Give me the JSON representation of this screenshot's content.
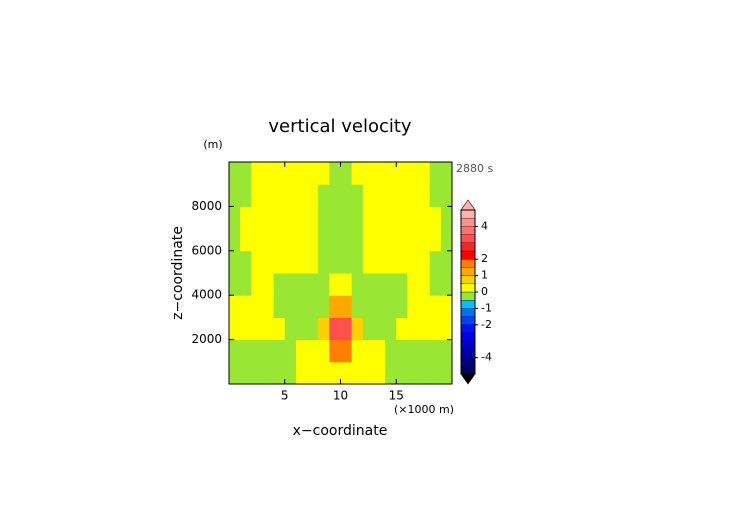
{
  "chart_data": {
    "type": "contour",
    "title": "vertical velocity",
    "y_unit_label": "(m)",
    "time_label": "2880 s",
    "xlabel": "x−coordinate",
    "x_unit_label": "(×1000 m)",
    "ylabel": "z−coordinate",
    "xlim": [
      0,
      20
    ],
    "ylim": [
      0,
      10000
    ],
    "xticks": [
      5,
      10,
      15
    ],
    "yticks": [
      2000,
      4000,
      6000,
      8000
    ],
    "x": [
      0.5,
      1.5,
      2.5,
      3.5,
      4.5,
      5.5,
      6.5,
      7.5,
      8.5,
      9.5,
      10.5,
      11.5,
      12.5,
      13.5,
      14.5,
      15.5,
      16.5,
      17.5,
      18.5,
      19.5
    ],
    "y": [
      500,
      1500,
      2500,
      3500,
      4500,
      5500,
      6500,
      7500,
      8500,
      9500
    ],
    "z": [
      [
        -0.2,
        -0.2,
        -0.2,
        -0.2,
        -0.2,
        -0.2,
        0.2,
        0.2,
        0.2,
        0.2,
        0.2,
        0.2,
        0.2,
        0.2,
        -0.2,
        -0.2,
        -0.2,
        -0.2,
        -0.2,
        -0.2
      ],
      [
        -0.2,
        -0.2,
        -0.2,
        -0.2,
        -0.2,
        -0.2,
        0.2,
        0.2,
        0.2,
        1.6,
        1.6,
        0.2,
        0.2,
        0.2,
        -0.2,
        -0.2,
        -0.2,
        -0.2,
        -0.2,
        -0.2
      ],
      [
        0.2,
        0.2,
        0.2,
        0.2,
        0.2,
        -0.2,
        -0.2,
        -0.2,
        0.7,
        3.2,
        3.2,
        0.7,
        -0.2,
        -0.2,
        -0.2,
        0.2,
        0.2,
        0.2,
        0.2,
        0.2
      ],
      [
        0.2,
        0.2,
        0.2,
        0.2,
        -0.2,
        -0.2,
        -0.2,
        -0.2,
        -0.2,
        1.2,
        1.2,
        -0.2,
        -0.2,
        -0.2,
        -0.2,
        -0.2,
        0.2,
        0.2,
        0.2,
        0.2
      ],
      [
        -0.2,
        -0.2,
        0.2,
        0.2,
        -0.2,
        -0.2,
        -0.2,
        -0.2,
        -0.2,
        0.2,
        0.2,
        -0.2,
        -0.2,
        -0.2,
        -0.2,
        -0.2,
        0.2,
        0.2,
        -0.2,
        -0.2
      ],
      [
        -0.2,
        -0.2,
        0.2,
        0.2,
        0.2,
        0.2,
        0.2,
        0.2,
        -0.2,
        -0.2,
        -0.2,
        -0.2,
        0.2,
        0.2,
        0.2,
        0.2,
        0.2,
        0.2,
        -0.2,
        -0.2
      ],
      [
        -0.2,
        0.2,
        0.2,
        0.2,
        0.2,
        0.2,
        0.2,
        0.2,
        -0.2,
        -0.2,
        -0.2,
        -0.2,
        0.2,
        0.2,
        0.2,
        0.2,
        0.2,
        0.2,
        0.2,
        -0.2
      ],
      [
        -0.2,
        0.2,
        0.2,
        0.2,
        0.2,
        0.2,
        0.2,
        0.2,
        -0.2,
        -0.2,
        -0.2,
        -0.2,
        0.2,
        0.2,
        0.2,
        0.2,
        0.2,
        0.2,
        0.2,
        -0.2
      ],
      [
        -0.2,
        -0.2,
        0.2,
        0.2,
        0.2,
        0.2,
        0.2,
        0.2,
        -0.2,
        -0.2,
        -0.2,
        -0.2,
        0.2,
        0.2,
        0.2,
        0.2,
        0.2,
        0.2,
        -0.2,
        -0.2
      ],
      [
        -0.2,
        -0.2,
        0.2,
        0.2,
        0.2,
        0.2,
        0.2,
        0.2,
        0.2,
        -0.2,
        -0.2,
        0.2,
        0.2,
        0.2,
        0.2,
        0.2,
        0.2,
        0.2,
        -0.2,
        -0.2
      ]
    ],
    "colorbar": {
      "levels": [
        -5,
        -4.5,
        -4,
        -3.5,
        -3,
        -2.5,
        -2,
        -1.5,
        -1,
        -0.5,
        0,
        0.5,
        1,
        1.5,
        2,
        2.5,
        3,
        3.5,
        4,
        4.5,
        5
      ],
      "colors": [
        "#000060",
        "#000080",
        "#0000a0",
        "#0000c0",
        "#0000e0",
        "#0010ff",
        "#0040ff",
        "#0070ff",
        "#00c0ff",
        "#99e633",
        "#ffff00",
        "#ffd000",
        "#ffa800",
        "#ff8000",
        "#ff0000",
        "#ff2020",
        "#ff5050",
        "#ff7070",
        "#ff9090",
        "#ffb0b0"
      ],
      "under_color": "#000000",
      "over_color": "#ffb0b0",
      "ticks": [
        -4,
        -2,
        -1,
        0,
        1,
        2,
        4
      ]
    }
  }
}
